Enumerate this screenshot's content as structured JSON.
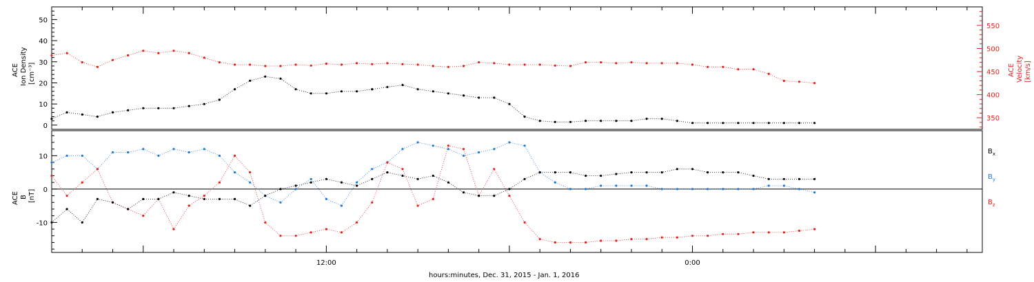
{
  "colors": {
    "black": "#000000",
    "red": "#e0201b",
    "blue": "#1e78d6"
  },
  "xaxis": {
    "label": "hours:minutes, Dec. 31, 2015 - Jan.  1, 2016",
    "tick_labels": [
      {
        "hours": 12,
        "text": "12:00"
      },
      {
        "hours": 24,
        "text": "0:00"
      }
    ],
    "range_hours": [
      3,
      33.5
    ]
  },
  "panel1": {
    "left_label_l1": "ACE",
    "left_label_l2": "Ion Density",
    "left_label_l3": "[cm⁻³]",
    "right_label_l1": "ACE",
    "right_label_l2": "Velocity",
    "right_label_l3": "[km/s]",
    "left_ticks": [
      "0",
      "10",
      "20",
      "30",
      "40",
      "50"
    ],
    "right_ticks": [
      "350",
      "400",
      "450",
      "500",
      "550"
    ]
  },
  "panel2": {
    "label_l1": "ACE",
    "label_l2": "B",
    "label_l3": "[nT]",
    "ticks": [
      "-10",
      "0",
      "10"
    ],
    "legend_bx": "B",
    "legend_bx_sub": "x",
    "legend_by": "B",
    "legend_by_sub": "y",
    "legend_bz": "B",
    "legend_bz_sub": "z"
  },
  "chart_data": [
    {
      "type": "scatter",
      "title": "",
      "xlabel": "hours:minutes, Dec. 31, 2015 - Jan.  1, 2016",
      "ylabel": "ACE Ion Density [cm⁻³]",
      "y2label": "ACE Velocity [km/s]",
      "x_unit": "hours since Dec. 31, 2015 00:00",
      "ylim": [
        -2,
        56
      ],
      "y2lim": [
        325,
        590
      ],
      "series": [
        {
          "name": "Ion Density",
          "axis": "left",
          "color": "#000000",
          "x": [
            3.0,
            3.5,
            4.0,
            4.5,
            5.0,
            5.5,
            6.0,
            6.5,
            7.0,
            7.5,
            8.0,
            8.5,
            9.0,
            9.5,
            10.0,
            10.5,
            11.0,
            11.5,
            12.0,
            12.5,
            13.0,
            13.5,
            14.0,
            14.5,
            15.0,
            15.5,
            16.0,
            16.5,
            17.0,
            17.5,
            18.0,
            18.5,
            19.0,
            19.5,
            20.0,
            20.5,
            21.0,
            21.5,
            22.0,
            22.5,
            23.0,
            23.5,
            24.0,
            24.5,
            25.0,
            25.5,
            26.0,
            26.5,
            27.0,
            27.5,
            28.0
          ],
          "y": [
            3,
            6,
            5,
            4,
            6,
            7,
            8,
            8,
            8,
            9,
            10,
            12,
            17,
            21,
            23,
            22,
            17,
            15,
            15,
            16,
            16,
            17,
            18,
            19,
            17,
            16,
            15,
            14,
            13,
            13,
            10,
            4,
            2,
            1.5,
            1.5,
            2,
            2,
            2,
            2,
            3,
            3,
            2,
            1,
            1,
            1,
            1,
            1,
            1,
            1,
            1,
            1
          ]
        },
        {
          "name": "Velocity",
          "axis": "right",
          "color": "#e0201b",
          "x": [
            3.0,
            3.5,
            4.0,
            4.5,
            5.0,
            5.5,
            6.0,
            6.5,
            7.0,
            7.5,
            8.0,
            8.5,
            9.0,
            9.5,
            10.0,
            10.5,
            11.0,
            11.5,
            12.0,
            12.5,
            13.0,
            13.5,
            14.0,
            14.5,
            15.0,
            15.5,
            16.0,
            16.5,
            17.0,
            17.5,
            18.0,
            18.5,
            19.0,
            19.5,
            20.0,
            20.5,
            21.0,
            21.5,
            22.0,
            22.5,
            23.0,
            23.5,
            24.0,
            24.5,
            25.0,
            25.5,
            26.0,
            26.5,
            27.0,
            27.5,
            28.0
          ],
          "y": [
            485,
            490,
            470,
            460,
            475,
            485,
            495,
            490,
            495,
            490,
            480,
            470,
            465,
            465,
            462,
            462,
            465,
            463,
            467,
            465,
            468,
            466,
            468,
            466,
            465,
            462,
            460,
            462,
            470,
            468,
            465,
            465,
            465,
            463,
            462,
            470,
            470,
            468,
            470,
            468,
            468,
            468,
            465,
            460,
            460,
            455,
            455,
            445,
            430,
            428,
            425
          ]
        }
      ]
    },
    {
      "type": "scatter",
      "title": "",
      "xlabel": "hours:minutes, Dec. 31, 2015 - Jan.  1, 2016",
      "ylabel": "ACE B [nT]",
      "x_unit": "hours since Dec. 31, 2015 00:00",
      "ylim": [
        -19,
        17.5
      ],
      "series": [
        {
          "name": "Bx",
          "color": "#000000",
          "x": [
            3.0,
            3.5,
            4.0,
            4.5,
            5.0,
            5.5,
            6.0,
            6.5,
            7.0,
            7.5,
            8.0,
            8.5,
            9.0,
            9.5,
            10.0,
            10.5,
            11.0,
            11.5,
            12.0,
            12.5,
            13.0,
            13.5,
            14.0,
            14.5,
            15.0,
            15.5,
            16.0,
            16.5,
            17.0,
            17.5,
            18.0,
            18.5,
            19.0,
            19.5,
            20.0,
            20.5,
            21.0,
            21.5,
            22.0,
            22.5,
            23.0,
            23.5,
            24.0,
            24.5,
            25.0,
            25.5,
            26.0,
            26.5,
            27.0,
            27.5,
            28.0
          ],
          "y": [
            -10,
            -6,
            -10,
            -3,
            -4,
            -6,
            -3,
            -3,
            -1,
            -2,
            -3,
            -3,
            -3,
            -5,
            -2,
            0,
            1,
            2,
            3,
            2,
            1,
            3,
            5,
            4,
            3,
            4,
            2,
            -1,
            -2,
            -2,
            0,
            3,
            5,
            5,
            5,
            4,
            4,
            4.5,
            5,
            5,
            5,
            6,
            6,
            5,
            5,
            5,
            4,
            3,
            3,
            3,
            3
          ]
        },
        {
          "name": "By",
          "color": "#1e78d6",
          "x": [
            3.0,
            3.5,
            4.0,
            4.5,
            5.0,
            5.5,
            6.0,
            6.5,
            7.0,
            7.5,
            8.0,
            8.5,
            9.0,
            9.5,
            10.0,
            10.5,
            11.0,
            11.5,
            12.0,
            12.5,
            13.0,
            13.5,
            14.0,
            14.5,
            15.0,
            15.5,
            16.0,
            16.5,
            17.0,
            17.5,
            18.0,
            18.5,
            19.0,
            19.5,
            20.0,
            20.5,
            21.0,
            21.5,
            22.0,
            22.5,
            23.0,
            23.5,
            24.0,
            24.5,
            25.0,
            25.5,
            26.0,
            26.5,
            27.0,
            27.5,
            28.0
          ],
          "y": [
            8,
            10,
            10,
            6,
            11,
            11,
            12,
            10,
            12,
            11,
            12,
            10,
            5,
            2,
            -2,
            -4,
            0,
            3,
            -3,
            -5,
            2,
            6,
            8,
            12,
            14,
            13,
            12,
            10,
            11,
            12,
            14,
            13,
            5,
            2,
            0,
            0,
            1,
            1,
            1,
            1,
            0,
            0,
            0,
            0,
            0,
            0,
            0,
            1,
            1,
            0,
            -1
          ]
        },
        {
          "name": "Bz",
          "color": "#e0201b",
          "x": [
            3.0,
            3.5,
            4.0,
            4.5,
            5.0,
            5.5,
            6.0,
            6.5,
            7.0,
            7.5,
            8.0,
            8.5,
            9.0,
            9.5,
            10.0,
            10.5,
            11.0,
            11.5,
            12.0,
            12.5,
            13.0,
            13.5,
            14.0,
            14.5,
            15.0,
            15.5,
            16.0,
            16.5,
            17.0,
            17.5,
            18.0,
            18.5,
            19.0,
            19.5,
            20.0,
            20.5,
            21.0,
            21.5,
            22.0,
            22.5,
            23.0,
            23.5,
            24.0,
            24.5,
            25.0,
            25.5,
            26.0,
            26.5,
            27.0,
            27.5,
            28.0
          ],
          "y": [
            4,
            -2,
            2,
            6,
            -4,
            -6,
            -8,
            -3,
            -12,
            -5,
            -2,
            2,
            10,
            5,
            -10,
            -14,
            -14,
            -13,
            -12,
            -13,
            -10,
            -4,
            8,
            6,
            -5,
            -3,
            13,
            12,
            -2,
            6,
            -2,
            -10,
            -15,
            -16,
            -16,
            -16,
            -15.5,
            -15.5,
            -15,
            -15,
            -14.5,
            -14.5,
            -14,
            -14,
            -13.5,
            -13.5,
            -13,
            -13,
            -13,
            -12.5,
            -12
          ]
        }
      ]
    }
  ]
}
